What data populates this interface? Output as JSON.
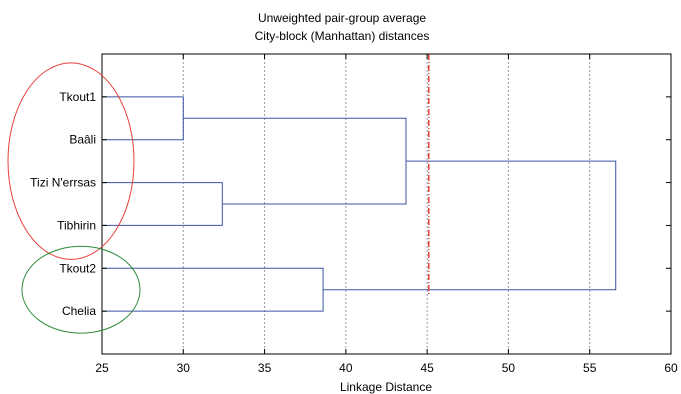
{
  "chart_data": {
    "type": "dendrogram",
    "title": "Unweighted pair-group average",
    "subtitle": "City-block (Manhattan) distances",
    "xlabel": "Linkage Distance",
    "xlim": [
      25,
      60
    ],
    "xticks": [
      "25",
      "30",
      "35",
      "40",
      "45",
      "50",
      "55",
      "60"
    ],
    "grid": true,
    "leaves": [
      "Tkout1",
      "Baâli",
      "Tizi N'errsas",
      "Tibhirin",
      "Tkout2",
      "Chelia"
    ],
    "merges": [
      {
        "left": "Tkout1",
        "right": "Baâli",
        "distance": 30.0
      },
      {
        "left": "Tizi N'errsas",
        "right": "Tibhirin",
        "distance": 32.4
      },
      {
        "left": "Tkout2",
        "right": "Chelia",
        "distance": 38.6
      },
      {
        "left": "Tkout1, Baâli",
        "right": "Tizi N'errsas, Tibhirin",
        "distance": 43.7
      },
      {
        "left": "Tkout1, Baâli, Tizi N'errsas, Tibhirin",
        "right": "Tkout2, Chelia",
        "distance": 56.6
      }
    ],
    "cutoff": 45.1,
    "groups": [
      {
        "members": [
          "Tkout1",
          "Baâli",
          "Tizi N'errsas",
          "Tibhirin"
        ],
        "color": "#e8403a"
      },
      {
        "members": [
          "Tkout2",
          "Chelia"
        ],
        "color": "#2e8b3a"
      }
    ],
    "colors": {
      "link": "#3a55a4",
      "cutoff": "#e8403a",
      "grid": "#9a9a9a"
    }
  }
}
